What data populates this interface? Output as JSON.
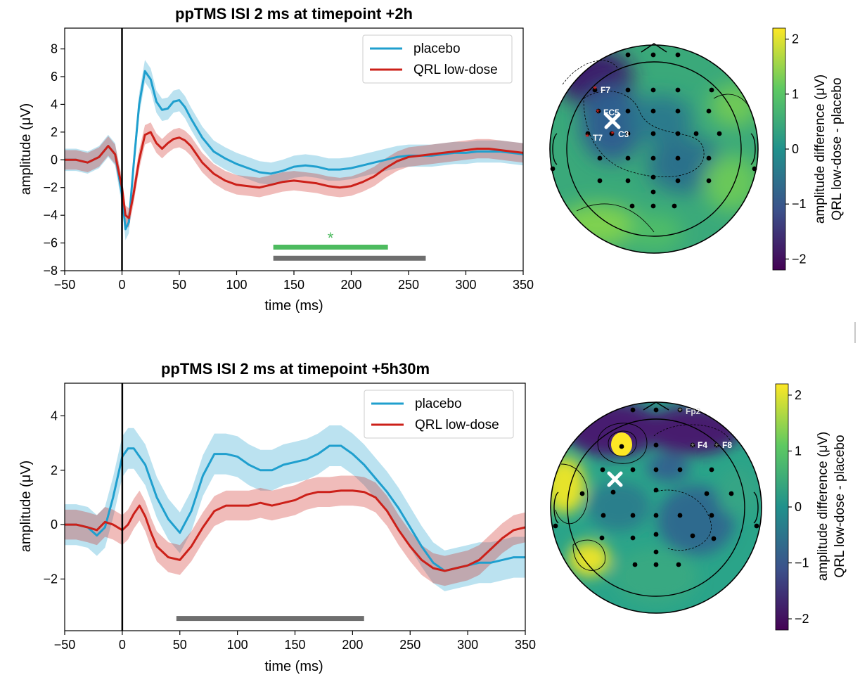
{
  "panels": [
    {
      "title": "ppTMS ISI 2 ms at timepoint +2h",
      "xlabel": "time (ms)",
      "ylabel": "amplitude (μV)",
      "legend": [
        "placebo",
        "QRL low-dose"
      ],
      "star_marker": "*",
      "colorbar_label_line1": "amplitude difference (μV)",
      "colorbar_label_line2": "QRL low-dose - placebo",
      "colorbar_ticks": [
        "2",
        "1",
        "0",
        "−1",
        "−2"
      ],
      "electrode_labels": [
        "F7",
        "FC5",
        "T7",
        "C3"
      ]
    },
    {
      "title": "ppTMS ISI 2 ms at timepoint +5h30m",
      "xlabel": "time (ms)",
      "ylabel": "amplitude (μV)",
      "legend": [
        "placebo",
        "QRL low-dose"
      ],
      "colorbar_label_line1": "amplitude difference (μV)",
      "colorbar_label_line2": "QRL low-dose - placebo",
      "colorbar_ticks": [
        "2",
        "1",
        "0",
        "−1",
        "−2"
      ],
      "electrode_labels": [
        "Fp2",
        "F4",
        "F8"
      ]
    }
  ],
  "colors": {
    "placebo": "#1f9fce",
    "qrl": "#cc2019",
    "sig_green": "#4dbb5f",
    "sig_grey": "#6e6e6e",
    "colormap": [
      "#440154",
      "#3b528b",
      "#21918c",
      "#5ec962",
      "#fde725"
    ]
  },
  "chart_data": [
    {
      "type": "line",
      "title": "ppTMS ISI 2 ms at timepoint +2h",
      "xlabel": "time (ms)",
      "ylabel": "amplitude (μV)",
      "xlim": [
        -50,
        350
      ],
      "ylim": [
        -8,
        9.5
      ],
      "xticks": [
        -50,
        0,
        50,
        100,
        150,
        200,
        250,
        300,
        350
      ],
      "yticks": [
        -8,
        -6,
        -4,
        -2,
        0,
        2,
        4,
        6,
        8
      ],
      "legend_position": "top-right",
      "stim_line_x": 0,
      "series": [
        {
          "name": "placebo",
          "x": [
            -50,
            -40,
            -30,
            -20,
            -12,
            -6,
            0,
            3,
            6,
            10,
            15,
            20,
            25,
            30,
            35,
            40,
            45,
            50,
            55,
            60,
            70,
            80,
            90,
            100,
            110,
            120,
            130,
            140,
            150,
            160,
            170,
            180,
            190,
            200,
            210,
            220,
            230,
            240,
            250,
            260,
            270,
            280,
            290,
            300,
            310,
            320,
            330,
            340,
            350
          ],
          "y": [
            0,
            0,
            -0.2,
            0.2,
            1.0,
            0.4,
            -2.5,
            -5.0,
            -4.5,
            -0.5,
            4.0,
            6.4,
            5.8,
            4.2,
            3.6,
            3.7,
            4.2,
            4.3,
            3.8,
            3.0,
            1.6,
            0.6,
            0.1,
            -0.3,
            -0.6,
            -0.9,
            -1.0,
            -0.8,
            -0.5,
            -0.4,
            -0.5,
            -0.7,
            -0.7,
            -0.6,
            -0.4,
            -0.2,
            0.0,
            0.2,
            0.3,
            0.3,
            0.3,
            0.4,
            0.5,
            0.5,
            0.6,
            0.6,
            0.6,
            0.5,
            0.4
          ],
          "ci": 0.8
        },
        {
          "name": "QRL low-dose",
          "x": [
            -50,
            -40,
            -30,
            -20,
            -12,
            -6,
            0,
            3,
            6,
            10,
            15,
            20,
            25,
            30,
            35,
            40,
            45,
            50,
            55,
            60,
            70,
            80,
            90,
            100,
            110,
            120,
            130,
            140,
            150,
            160,
            170,
            180,
            190,
            200,
            210,
            220,
            230,
            240,
            250,
            260,
            270,
            280,
            290,
            300,
            310,
            320,
            330,
            340,
            350
          ],
          "y": [
            0,
            0,
            -0.2,
            0.2,
            1.0,
            0.4,
            -2.0,
            -4.0,
            -4.2,
            -2.5,
            0.0,
            1.8,
            2.0,
            1.2,
            0.8,
            1.2,
            1.5,
            1.6,
            1.4,
            1.0,
            -0.2,
            -1.0,
            -1.5,
            -1.8,
            -1.9,
            -2.0,
            -1.8,
            -1.6,
            -1.5,
            -1.6,
            -1.7,
            -1.9,
            -2.0,
            -1.9,
            -1.6,
            -1.2,
            -0.6,
            -0.1,
            0.2,
            0.3,
            0.4,
            0.5,
            0.6,
            0.7,
            0.8,
            0.8,
            0.7,
            0.6,
            0.5
          ],
          "ci": 0.7
        }
      ],
      "significance_bars": [
        {
          "color": "green",
          "x": [
            132,
            232
          ],
          "y": -6.3,
          "star": true
        },
        {
          "color": "grey",
          "x": [
            132,
            265
          ],
          "y": -7.1,
          "star": false
        }
      ],
      "colorbar": {
        "range": [
          -2.2,
          2.2
        ],
        "ticks": [
          -2,
          -1,
          0,
          1,
          2
        ]
      }
    },
    {
      "type": "line",
      "title": "ppTMS ISI 2 ms at timepoint +5h30m",
      "xlabel": "time (ms)",
      "ylabel": "amplitude (μV)",
      "xlim": [
        -50,
        350
      ],
      "ylim": [
        -3.9,
        5.2
      ],
      "xticks": [
        -50,
        0,
        50,
        100,
        150,
        200,
        250,
        300,
        350
      ],
      "yticks": [
        -2,
        0,
        2,
        4
      ],
      "legend_position": "top-right",
      "stim_line_x": 0,
      "series": [
        {
          "name": "placebo",
          "x": [
            -50,
            -40,
            -30,
            -22,
            -15,
            -8,
            0,
            5,
            10,
            20,
            30,
            40,
            50,
            60,
            70,
            80,
            90,
            100,
            110,
            120,
            130,
            140,
            150,
            160,
            170,
            180,
            190,
            200,
            210,
            220,
            230,
            240,
            250,
            260,
            270,
            280,
            290,
            300,
            310,
            320,
            330,
            340,
            350
          ],
          "y": [
            0,
            0,
            -0.1,
            -0.4,
            -0.1,
            1.0,
            2.5,
            2.8,
            2.8,
            2.2,
            1.0,
            0.2,
            -0.3,
            0.5,
            1.8,
            2.6,
            2.6,
            2.5,
            2.2,
            2.0,
            2.0,
            2.2,
            2.3,
            2.4,
            2.6,
            2.9,
            2.9,
            2.6,
            2.2,
            1.7,
            1.2,
            0.6,
            -0.1,
            -0.8,
            -1.4,
            -1.7,
            -1.6,
            -1.5,
            -1.4,
            -1.4,
            -1.3,
            -1.2,
            -1.2
          ],
          "ci": 0.75
        },
        {
          "name": "QRL low-dose",
          "x": [
            -50,
            -40,
            -30,
            -22,
            -15,
            -8,
            0,
            5,
            10,
            15,
            20,
            25,
            30,
            40,
            50,
            60,
            70,
            80,
            90,
            100,
            110,
            120,
            130,
            140,
            150,
            160,
            170,
            180,
            190,
            200,
            210,
            220,
            230,
            240,
            250,
            260,
            270,
            280,
            290,
            300,
            310,
            320,
            330,
            340,
            350
          ],
          "y": [
            0,
            0,
            -0.1,
            -0.2,
            0.1,
            0.0,
            -0.2,
            0.0,
            0.4,
            0.7,
            0.3,
            -0.3,
            -0.8,
            -1.2,
            -1.3,
            -0.8,
            -0.1,
            0.5,
            0.7,
            0.7,
            0.7,
            0.8,
            0.7,
            0.8,
            0.9,
            1.1,
            1.2,
            1.2,
            1.25,
            1.25,
            1.2,
            1.0,
            0.5,
            -0.2,
            -0.8,
            -1.3,
            -1.6,
            -1.7,
            -1.6,
            -1.5,
            -1.3,
            -0.9,
            -0.5,
            -0.2,
            -0.1
          ],
          "ci": 0.55
        }
      ],
      "significance_bars": [
        {
          "color": "grey",
          "x": [
            47,
            210
          ],
          "y": -3.45,
          "star": false
        }
      ],
      "colorbar": {
        "range": [
          -2.2,
          2.2
        ],
        "ticks": [
          -2,
          -1,
          0,
          1,
          2
        ]
      }
    }
  ]
}
